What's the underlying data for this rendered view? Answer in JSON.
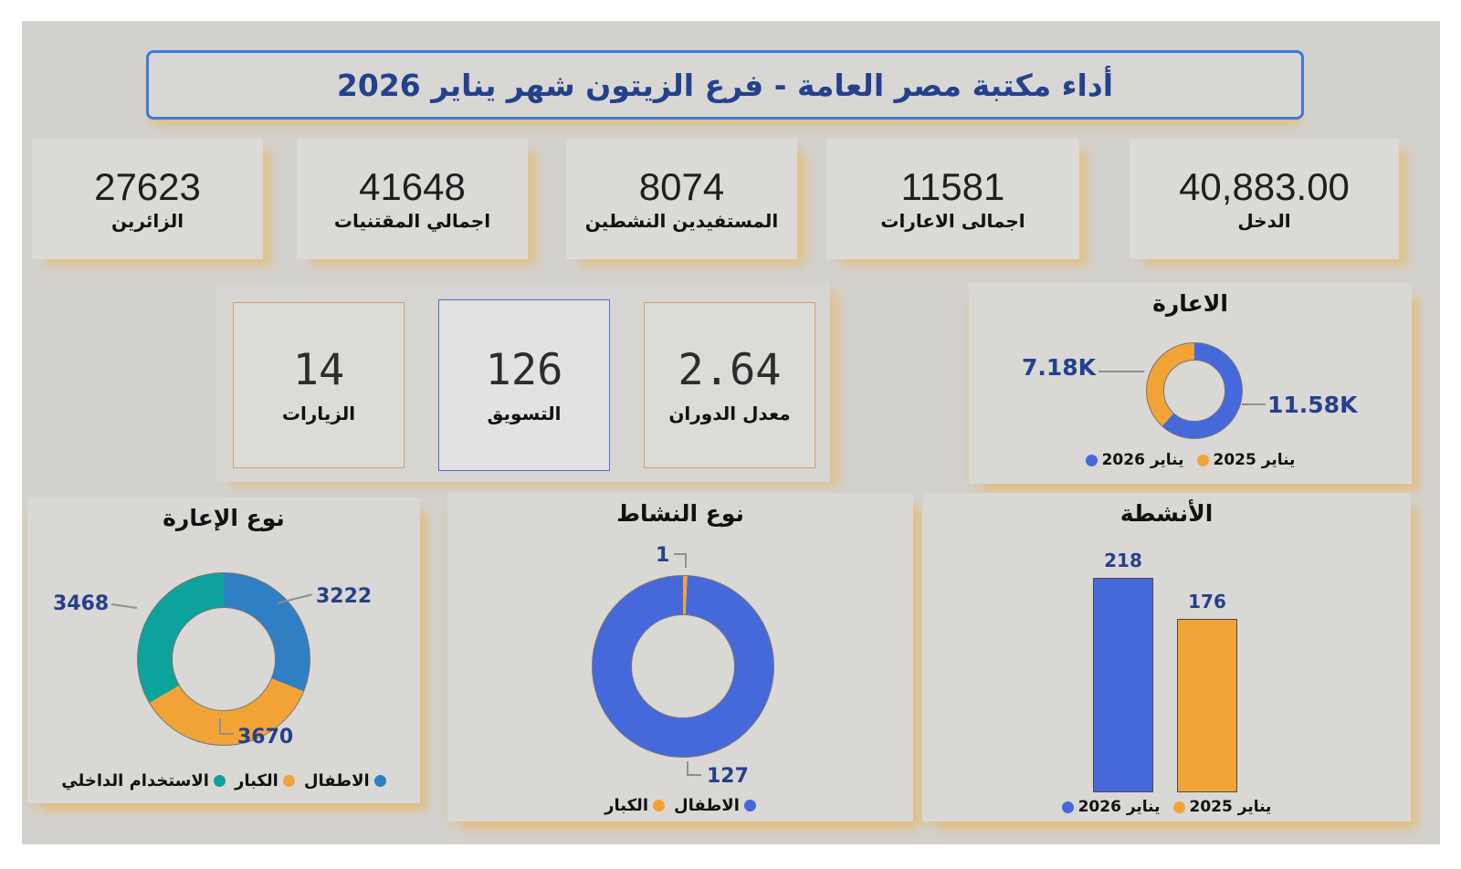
{
  "title_banner": {
    "text": "أداء مكتبة مصر العامة - فرع الزيتون شهر يناير 2026"
  },
  "kpi_cards": [
    {
      "value": "27623",
      "label": "الزائرين"
    },
    {
      "value": "41648",
      "label": "اجمالي المقتنيات"
    },
    {
      "value": "8074",
      "label": "المستفيدين النشطين"
    },
    {
      "value": "11581",
      "label": "اجمالى الاعارات"
    },
    {
      "value": "40,883.00",
      "label": "الدخل"
    }
  ],
  "mini_cards": [
    {
      "value": "14",
      "label": "الزيارات"
    },
    {
      "value": "126",
      "label": "التسويق"
    },
    {
      "value": "2.64",
      "label": "معدل الدوران"
    }
  ],
  "colors": {
    "royal_blue": "#4569DB",
    "orange": "#F2A336",
    "azure_blue": "#2F7FC4",
    "teal": "#0BA39C",
    "label_navy": "#24418E",
    "title_border_blue": "#3B7AD9",
    "panel_glow_tan": "#E2BE7A",
    "background_gray": "#D3D1CE"
  },
  "chart_data": [
    {
      "type": "donut",
      "title": "الاعارة",
      "start_angle": 0,
      "legend_position": "bottom",
      "series": [
        {
          "name": "يناير 2026",
          "value": 11580,
          "display": "11.58K",
          "color": "#4569DB"
        },
        {
          "name": "يناير 2025",
          "value": 7180,
          "display": "7.18K",
          "color": "#F2A336"
        }
      ]
    },
    {
      "type": "donut",
      "title": "نوع الإعارة",
      "start_angle": 0,
      "legend_position": "bottom",
      "series": [
        {
          "name": "الاطفال",
          "value": 3222,
          "display": "3222",
          "color": "#2F7FC4"
        },
        {
          "name": "الكبار",
          "value": 3670,
          "display": "3670",
          "color": "#F2A336"
        },
        {
          "name": "الاستخدام الداخلي",
          "value": 3468,
          "display": "3468",
          "color": "#0BA39C"
        }
      ]
    },
    {
      "type": "donut",
      "title": "نوع النشاط",
      "start_angle": 2.8,
      "legend_position": "bottom",
      "series": [
        {
          "name": "الاطفال",
          "value": 127,
          "display": "127",
          "color": "#4569DB"
        },
        {
          "name": "الكبار",
          "value": 1,
          "display": "1",
          "color": "#F2A336"
        }
      ]
    },
    {
      "type": "bar",
      "title": "الأنشطة",
      "categories": [
        "يناير 2026",
        "يناير 2025"
      ],
      "ylim": [
        0,
        218
      ],
      "grid": false,
      "legend_position": "bottom",
      "series": [
        {
          "name": "يناير 2026",
          "value": 218,
          "display": "218",
          "color": "#4569DB"
        },
        {
          "name": "يناير 2025",
          "value": 176,
          "display": "176",
          "color": "#F2A336"
        }
      ]
    }
  ]
}
